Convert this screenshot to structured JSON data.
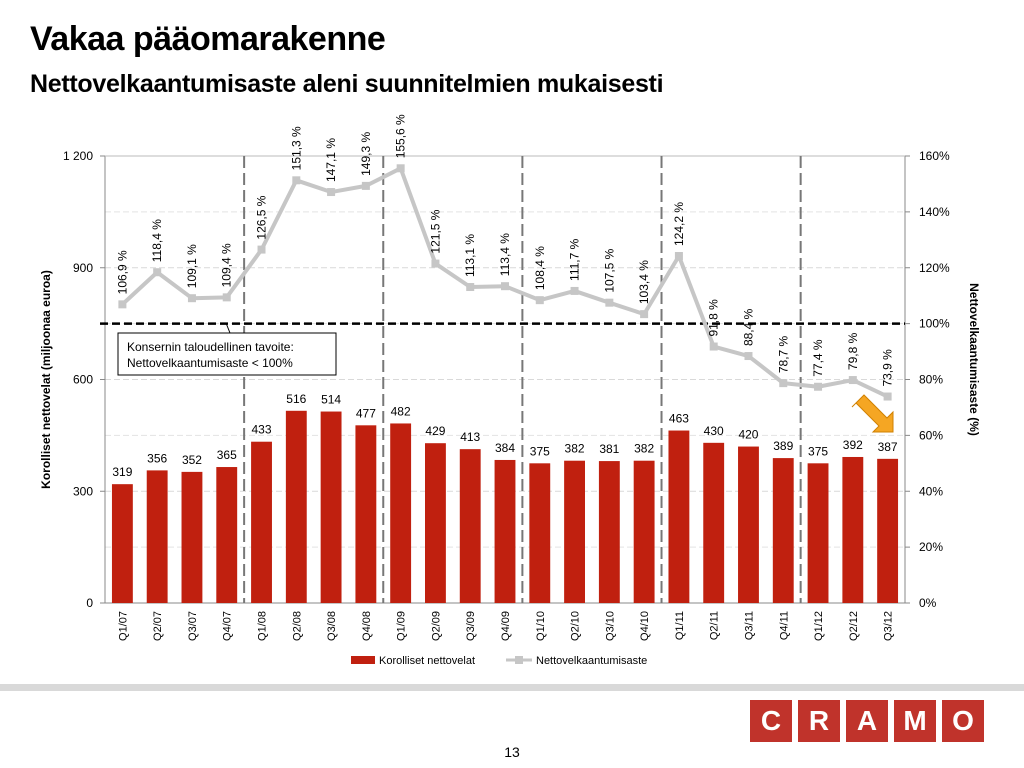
{
  "slide": {
    "title": "Vakaa pääomarakenne",
    "subtitle": "Nettovelkaantumisaste aleni suunnitelmien mukaisesti",
    "page_number": "13",
    "logo_letters": [
      "C",
      "R",
      "A",
      "M",
      "O"
    ],
    "colors": {
      "bar": "#c0200f",
      "line": "#c6c6c6",
      "brand": "#c0332b",
      "arrow": "#f5a623"
    }
  },
  "chart_data": {
    "type": "bar",
    "categories": [
      "Q1/07",
      "Q2/07",
      "Q3/07",
      "Q4/07",
      "Q1/08",
      "Q2/08",
      "Q3/08",
      "Q4/08",
      "Q1/09",
      "Q2/09",
      "Q3/09",
      "Q4/09",
      "Q1/10",
      "Q2/10",
      "Q3/10",
      "Q4/10",
      "Q1/11",
      "Q2/11",
      "Q3/11",
      "Q4/11",
      "Q1/12",
      "Q2/12",
      "Q3/12"
    ],
    "series": [
      {
        "name": "Korolliset nettovelat",
        "type": "bar",
        "axis": "left",
        "values": [
          319,
          356,
          352,
          365,
          433,
          516,
          514,
          477,
          482,
          429,
          413,
          384,
          375,
          382,
          381,
          382,
          463,
          430,
          420,
          389,
          375,
          392,
          387
        ]
      },
      {
        "name": "Nettovelkaantumisaste",
        "type": "line",
        "axis": "right",
        "values": [
          106.9,
          118.4,
          109.1,
          109.4,
          126.5,
          151.3,
          147.1,
          149.3,
          155.6,
          121.5,
          113.1,
          113.4,
          108.4,
          111.7,
          107.5,
          103.4,
          124.2,
          91.8,
          88.4,
          78.7,
          77.4,
          79.8,
          73.9
        ],
        "labels": [
          "106,9 %",
          "118,4 %",
          "109,1 %",
          "109,4 %",
          "126,5 %",
          "151,3 %",
          "147,1 %",
          "149,3 %",
          "155,6 %",
          "121,5 %",
          "113,1 %",
          "113,4 %",
          "108,4 %",
          "111,7 %",
          "107,5 %",
          "103,4 %",
          "124,2 %",
          "91,8 %",
          "88,4 %",
          "78,7 %",
          "77,4 %",
          "79,8 %",
          "73,9 %"
        ]
      }
    ],
    "ylabel": "Korolliset nettovelat  (miljoonaa euroa)",
    "y2label": "Nettovelkaantumisaste  (%)",
    "ylim": [
      0,
      1200
    ],
    "y_ticks": [
      "0",
      "300",
      "600",
      "900",
      "1 200"
    ],
    "y2lim": [
      0,
      160
    ],
    "y2_ticks": [
      "0%",
      "20%",
      "40%",
      "60%",
      "80%",
      "100%",
      "120%",
      "140%",
      "160%"
    ],
    "target_line_value": 100,
    "annotation": "Konsernin taloudellinen tavoite:\nNettovelkaantumisaste < 100%",
    "year_separators_after": [
      "Q4/07",
      "Q4/08",
      "Q4/09",
      "Q4/10",
      "Q4/11"
    ],
    "legend": [
      "Korolliset nettovelat",
      "Nettovelkaantumisaste"
    ],
    "legend_position": "bottom",
    "grid": true
  }
}
